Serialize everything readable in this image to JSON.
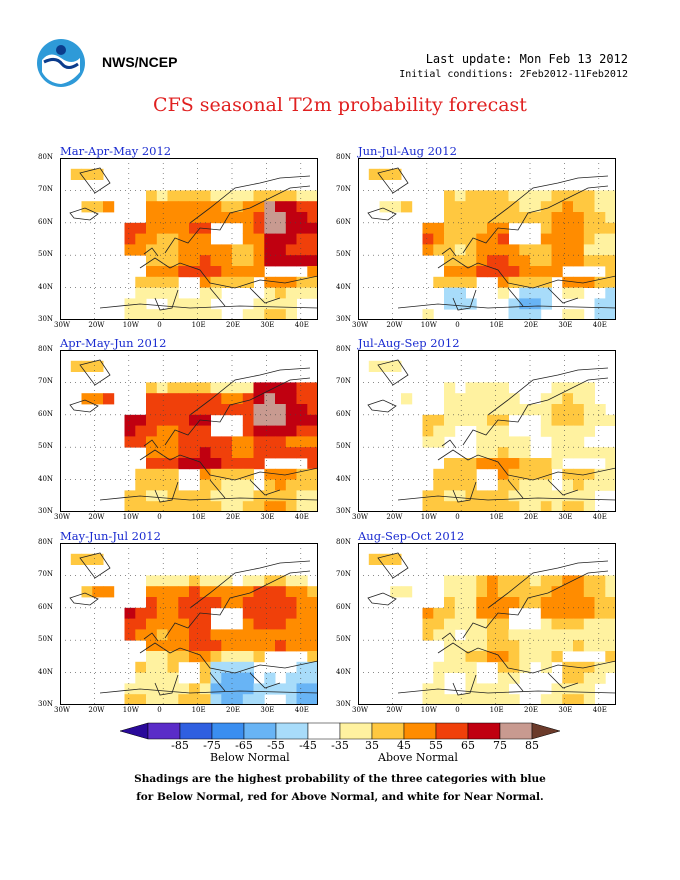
{
  "header": {
    "org": "NWS/NCEP",
    "last_update": "Last update: Mon Feb 13 2012",
    "initial_conditions": "Initial conditions: 2Feb2012-11Feb2012"
  },
  "title": "CFS seasonal T2m probability forecast",
  "panels": [
    {
      "title": "Mar-Apr-May 2012",
      "pattern": "mam"
    },
    {
      "title": "Jun-Jul-Aug 2012",
      "pattern": "jja"
    },
    {
      "title": "Apr-May-Jun 2012",
      "pattern": "amj"
    },
    {
      "title": "Jul-Aug-Sep 2012",
      "pattern": "jas"
    },
    {
      "title": "May-Jun-Jul 2012",
      "pattern": "mjj"
    },
    {
      "title": "Aug-Sep-Oct 2012",
      "pattern": "aso"
    }
  ],
  "axes": {
    "lon_labels": [
      "30W",
      "20W",
      "10W",
      "0",
      "10E",
      "20E",
      "30E",
      "40E"
    ],
    "lat_labels": [
      "30N",
      "40N",
      "50N",
      "60N",
      "70N",
      "80N"
    ]
  },
  "colorbar": {
    "labels": [
      "-85",
      "-75",
      "-65",
      "-55",
      "-45",
      "-35",
      "35",
      "45",
      "55",
      "65",
      "75",
      "85"
    ],
    "colors": [
      "#5a2cc8",
      "#2f5fe0",
      "#3a8ef0",
      "#68b4f5",
      "#a8dcfa",
      "#ffffff",
      "#fff2a0",
      "#ffc840",
      "#ff8c00",
      "#f0400a",
      "#c00010",
      "#c89a90"
    ],
    "below_label": "Below Normal",
    "above_label": "Above Normal"
  },
  "footnote": {
    "line1": "Shadings are the highest probability of the three categories with blue",
    "line2": "for Below Normal, red for Above Normal, and white for Near Normal."
  }
}
